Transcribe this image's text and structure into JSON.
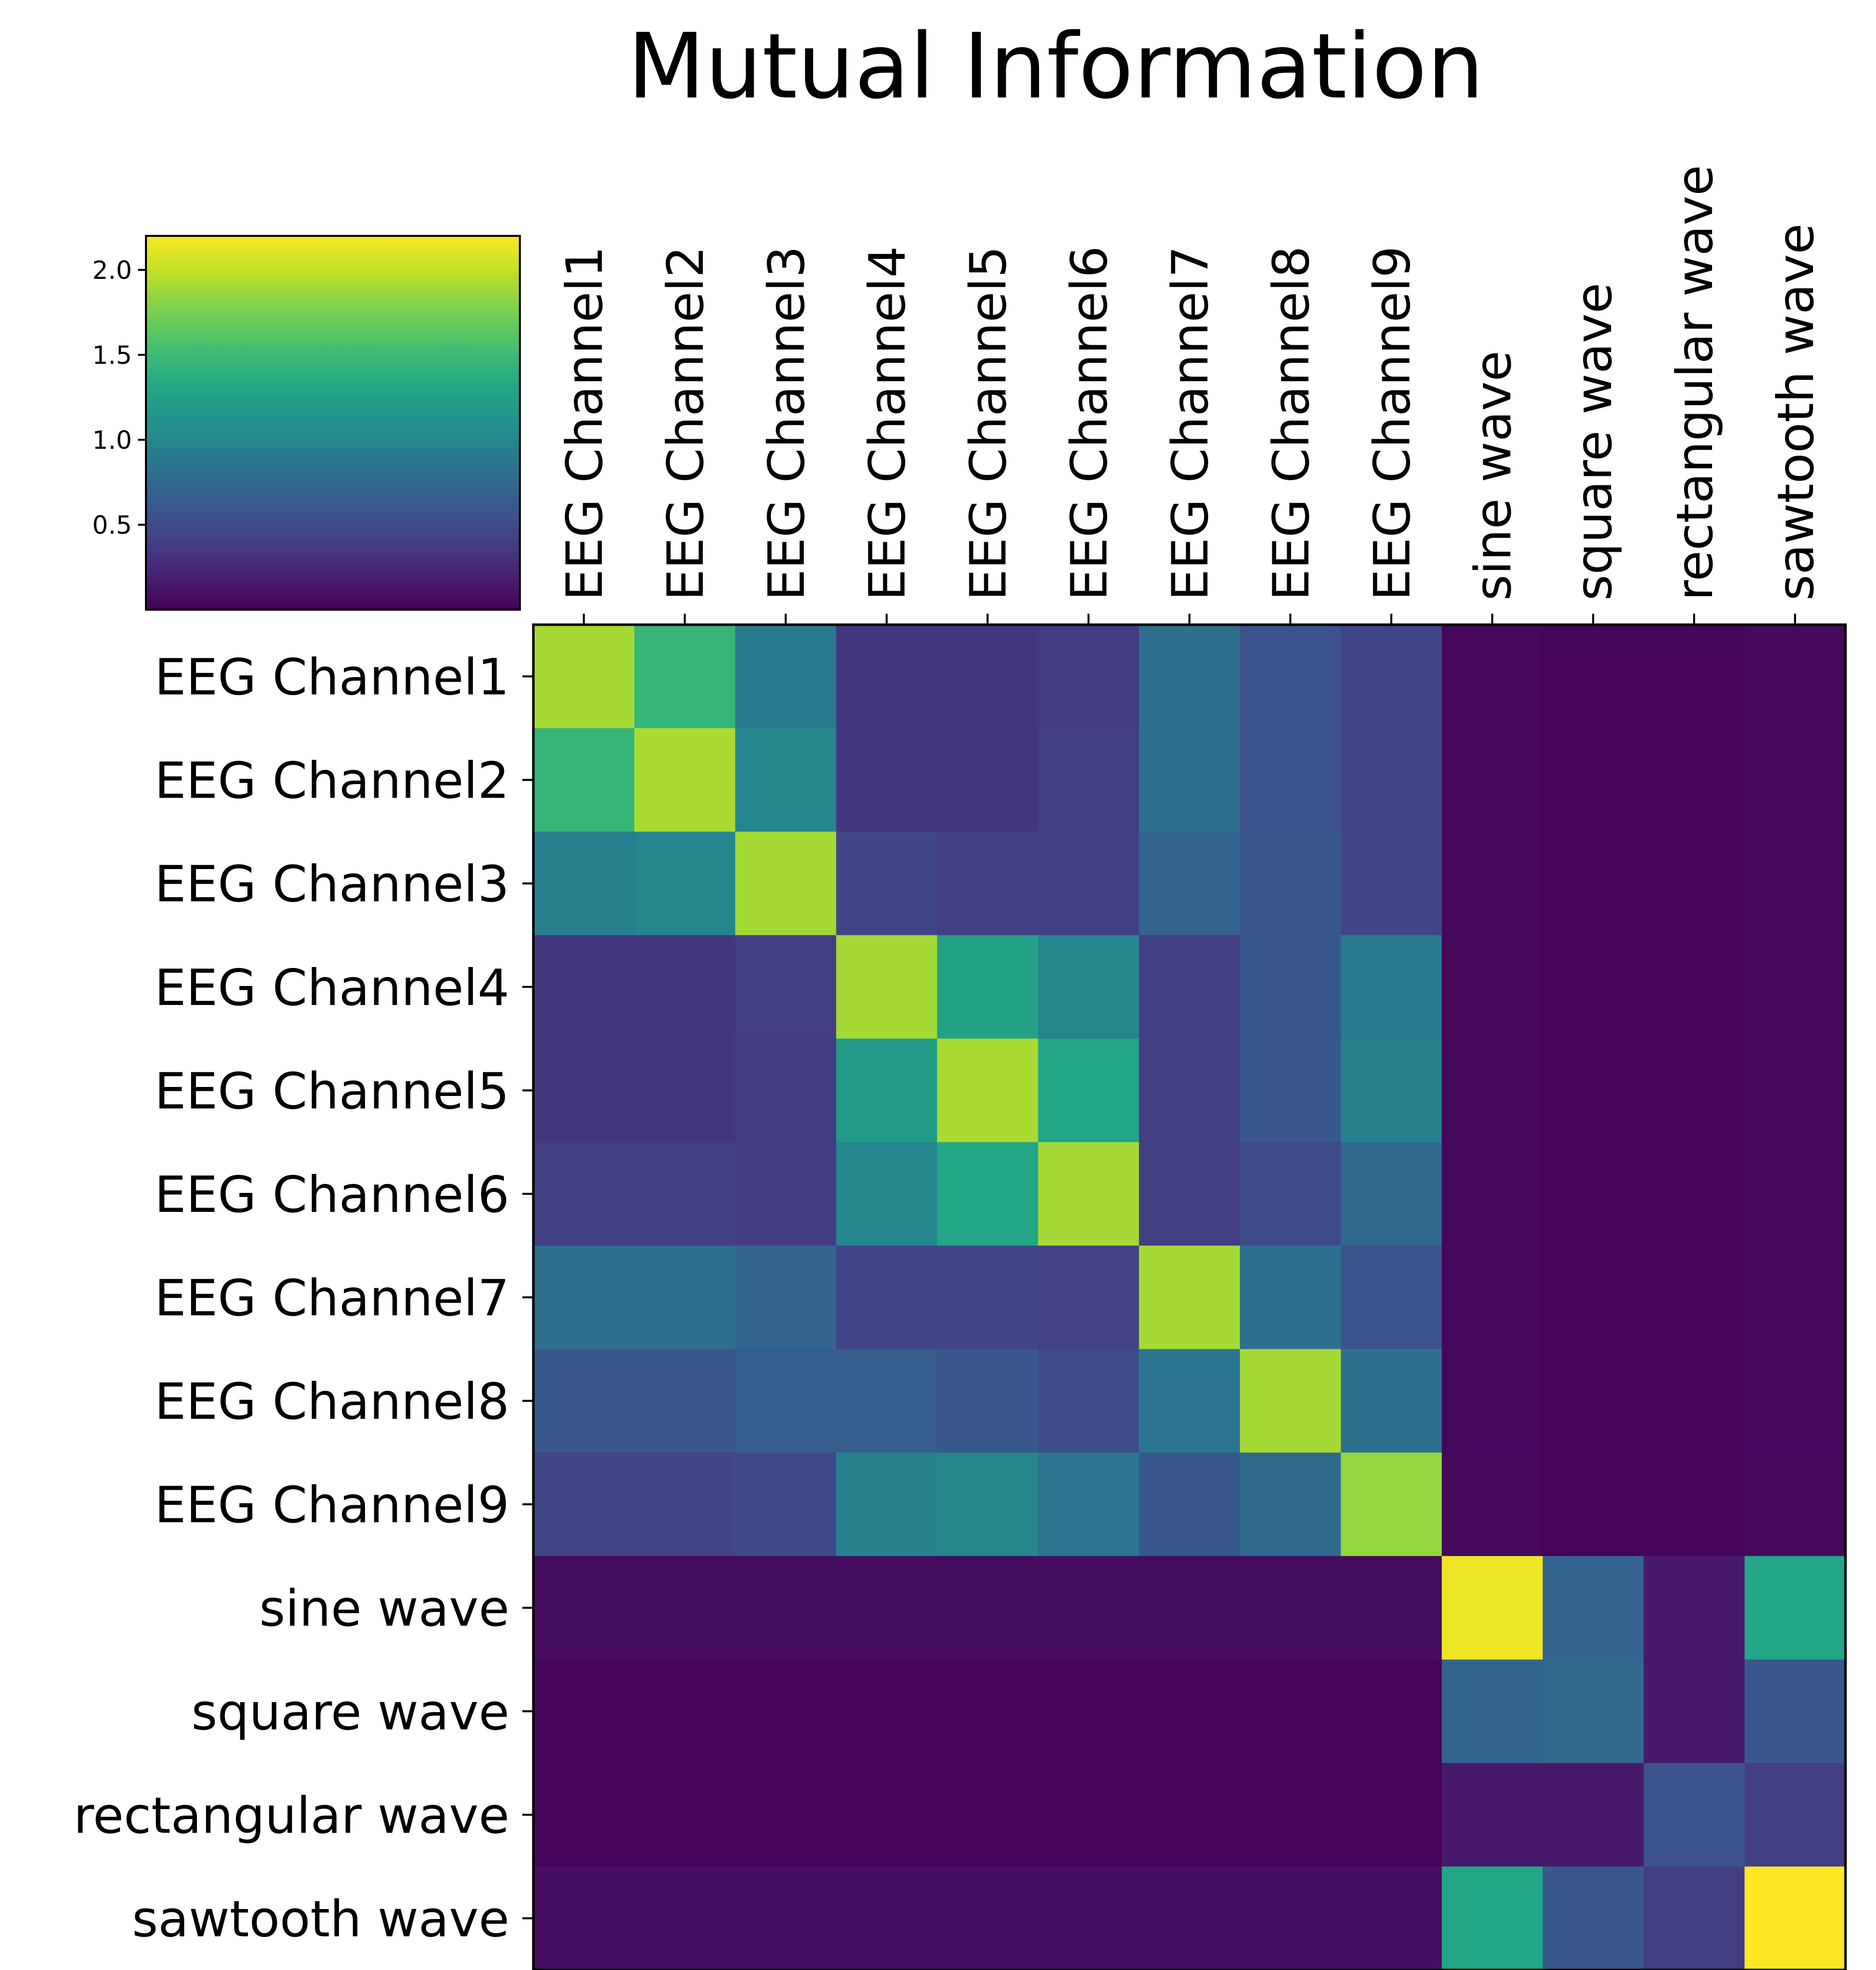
{
  "chart_data": {
    "type": "heatmap",
    "title": "Mutual Information",
    "xlabel": "",
    "ylabel": "",
    "labels": [
      "EEG Channel1",
      "EEG Channel2",
      "EEG Channel3",
      "EEG Channel4",
      "EEG Channel5",
      "EEG Channel6",
      "EEG Channel7",
      "EEG Channel8",
      "EEG Channel9",
      "sine wave",
      "square wave",
      "rectangular wave",
      "sawtooth wave"
    ],
    "values": [
      [
        1.9,
        1.45,
        0.9,
        0.35,
        0.35,
        0.38,
        0.8,
        0.55,
        0.45,
        0.04,
        0.02,
        0.02,
        0.05
      ],
      [
        1.45,
        1.92,
        1.0,
        0.35,
        0.35,
        0.4,
        0.8,
        0.55,
        0.45,
        0.04,
        0.02,
        0.02,
        0.05
      ],
      [
        0.95,
        1.0,
        1.9,
        0.45,
        0.4,
        0.4,
        0.7,
        0.6,
        0.45,
        0.04,
        0.02,
        0.02,
        0.05
      ],
      [
        0.35,
        0.35,
        0.4,
        1.9,
        1.25,
        1.0,
        0.4,
        0.6,
        0.9,
        0.04,
        0.02,
        0.02,
        0.05
      ],
      [
        0.35,
        0.35,
        0.38,
        1.2,
        1.92,
        1.3,
        0.4,
        0.6,
        0.95,
        0.04,
        0.02,
        0.02,
        0.05
      ],
      [
        0.4,
        0.4,
        0.38,
        1.0,
        1.3,
        1.9,
        0.4,
        0.5,
        0.75,
        0.04,
        0.02,
        0.02,
        0.05
      ],
      [
        0.8,
        0.8,
        0.7,
        0.45,
        0.45,
        0.42,
        1.9,
        0.8,
        0.55,
        0.04,
        0.02,
        0.02,
        0.05
      ],
      [
        0.6,
        0.6,
        0.65,
        0.65,
        0.6,
        0.5,
        0.85,
        1.9,
        0.8,
        0.04,
        0.02,
        0.02,
        0.05
      ],
      [
        0.45,
        0.45,
        0.48,
        0.95,
        1.0,
        0.85,
        0.6,
        0.75,
        1.85,
        0.04,
        0.02,
        0.02,
        0.05
      ],
      [
        0.06,
        0.06,
        0.06,
        0.06,
        0.06,
        0.06,
        0.06,
        0.06,
        0.06,
        2.15,
        0.7,
        0.15,
        1.3
      ],
      [
        0.02,
        0.02,
        0.02,
        0.02,
        0.02,
        0.02,
        0.02,
        0.02,
        0.02,
        0.7,
        0.75,
        0.15,
        0.6
      ],
      [
        0.02,
        0.02,
        0.02,
        0.02,
        0.02,
        0.02,
        0.02,
        0.02,
        0.02,
        0.15,
        0.15,
        0.55,
        0.4
      ],
      [
        0.07,
        0.07,
        0.07,
        0.07,
        0.07,
        0.07,
        0.07,
        0.07,
        0.07,
        1.3,
        0.6,
        0.4,
        2.2
      ]
    ],
    "zlim": [
      0.0,
      2.2
    ],
    "colormap": "viridis",
    "colorbar": {
      "ticks": [
        0.5,
        1.0,
        1.5,
        2.0
      ],
      "tick_labels": [
        "0.5",
        "1.0",
        "1.5",
        "2.0"
      ],
      "placement": "top-left"
    },
    "x_tick_position": "top",
    "x_tick_rotation": "vertical",
    "grid": false
  }
}
